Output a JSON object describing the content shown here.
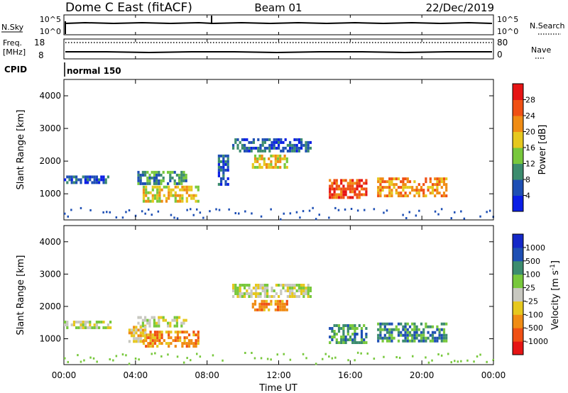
{
  "header": {
    "station": "Dome C East (fitACF)",
    "beam": "Beam 01",
    "date": "22/Dec/2019"
  },
  "panels": {
    "nsky": {
      "label": "N.Sky",
      "ticks": [
        "10^5",
        "10^0"
      ],
      "right_label": "N.Search",
      "right_ticks": [
        "10^5",
        "10^0"
      ]
    },
    "freq": {
      "label_line1": "Freq.",
      "label_line2": "[MHz]",
      "ticks": [
        "18",
        "8"
      ],
      "right_label": "Nave",
      "right_ticks": [
        "80",
        "0"
      ]
    },
    "cpid": {
      "label": "CPID",
      "value": "normal 150"
    }
  },
  "x_axis": {
    "label": "Time UT",
    "ticks": [
      "00:00",
      "04:00",
      "08:00",
      "12:00",
      "16:00",
      "20:00",
      "00:00"
    ]
  },
  "colors": {
    "power": [
      "#0a1ee6",
      "#1e4fb4",
      "#3c8c6e",
      "#78c83c",
      "#e6c81e",
      "#f08c14",
      "#f05014",
      "#e61414"
    ],
    "velocity": [
      "#e61414",
      "#f05014",
      "#f08c14",
      "#e6c81e",
      "#c8c8c0",
      "#78c83c",
      "#3c8c6e",
      "#1e4fb4",
      "#1428c8"
    ]
  },
  "chart_data": [
    {
      "type": "heatmap",
      "name_axis": "Power [dB]",
      "ylabel": "Slant Range [km]",
      "xlabel": "",
      "x_unit": "hours UT",
      "xlim": [
        0,
        24
      ],
      "ylim": [
        200,
        4500
      ],
      "yticks": [
        1000,
        2000,
        3000,
        4000
      ],
      "colorbar_label": "Power [dB]",
      "colorbar_ticks": [
        "4",
        "8",
        "12",
        "16",
        "20",
        "24",
        "28"
      ],
      "regions": [
        {
          "t0": 0.0,
          "t1": 2.6,
          "r0": 1380,
          "r1": 1560,
          "level": 1
        },
        {
          "t0": 4.1,
          "t1": 6.8,
          "r0": 1350,
          "r1": 1700,
          "level": 2
        },
        {
          "t0": 4.4,
          "t1": 7.5,
          "r0": 750,
          "r1": 1250,
          "level": 4
        },
        {
          "t0": 8.6,
          "t1": 9.2,
          "r0": 1300,
          "r1": 2200,
          "level": 1
        },
        {
          "t0": 9.4,
          "t1": 13.8,
          "r0": 2300,
          "r1": 2700,
          "level": 1
        },
        {
          "t0": 10.5,
          "t1": 12.5,
          "r0": 1850,
          "r1": 2200,
          "level": 4
        },
        {
          "t0": 14.8,
          "t1": 16.9,
          "r0": 900,
          "r1": 1450,
          "level": 6
        },
        {
          "t0": 17.5,
          "t1": 21.4,
          "r0": 900,
          "r1": 1500,
          "level": 5
        }
      ]
    },
    {
      "type": "heatmap",
      "ylabel": "Slant Range [km]",
      "xlabel": "Time UT",
      "x_unit": "hours UT",
      "xlim": [
        0,
        24
      ],
      "ylim": [
        200,
        4500
      ],
      "yticks": [
        1000,
        2000,
        3000,
        4000
      ],
      "colorbar_label": "Velocity [m s^-1]",
      "colorbar_ticks": [
        "1000",
        "500",
        "100",
        "25",
        "-25",
        "-100",
        "-500",
        "-1000"
      ],
      "regions": [
        {
          "t0": 0.0,
          "t1": 2.6,
          "r0": 1380,
          "r1": 1560,
          "level": 4
        },
        {
          "t0": 4.1,
          "t1": 6.8,
          "r0": 1350,
          "r1": 1700,
          "level": 4
        },
        {
          "t0": 4.4,
          "t1": 7.5,
          "r0": 750,
          "r1": 1250,
          "level": 2
        },
        {
          "t0": 3.6,
          "t1": 4.6,
          "r0": 900,
          "r1": 1400,
          "level": 3
        },
        {
          "t0": 9.4,
          "t1": 13.8,
          "r0": 2300,
          "r1": 2700,
          "level": 4
        },
        {
          "t0": 10.5,
          "t1": 12.5,
          "r0": 1850,
          "r1": 2200,
          "level": 2
        },
        {
          "t0": 14.8,
          "t1": 16.9,
          "r0": 900,
          "r1": 1450,
          "level": 6
        },
        {
          "t0": 17.5,
          "t1": 21.4,
          "r0": 900,
          "r1": 1500,
          "level": 6
        }
      ]
    }
  ]
}
